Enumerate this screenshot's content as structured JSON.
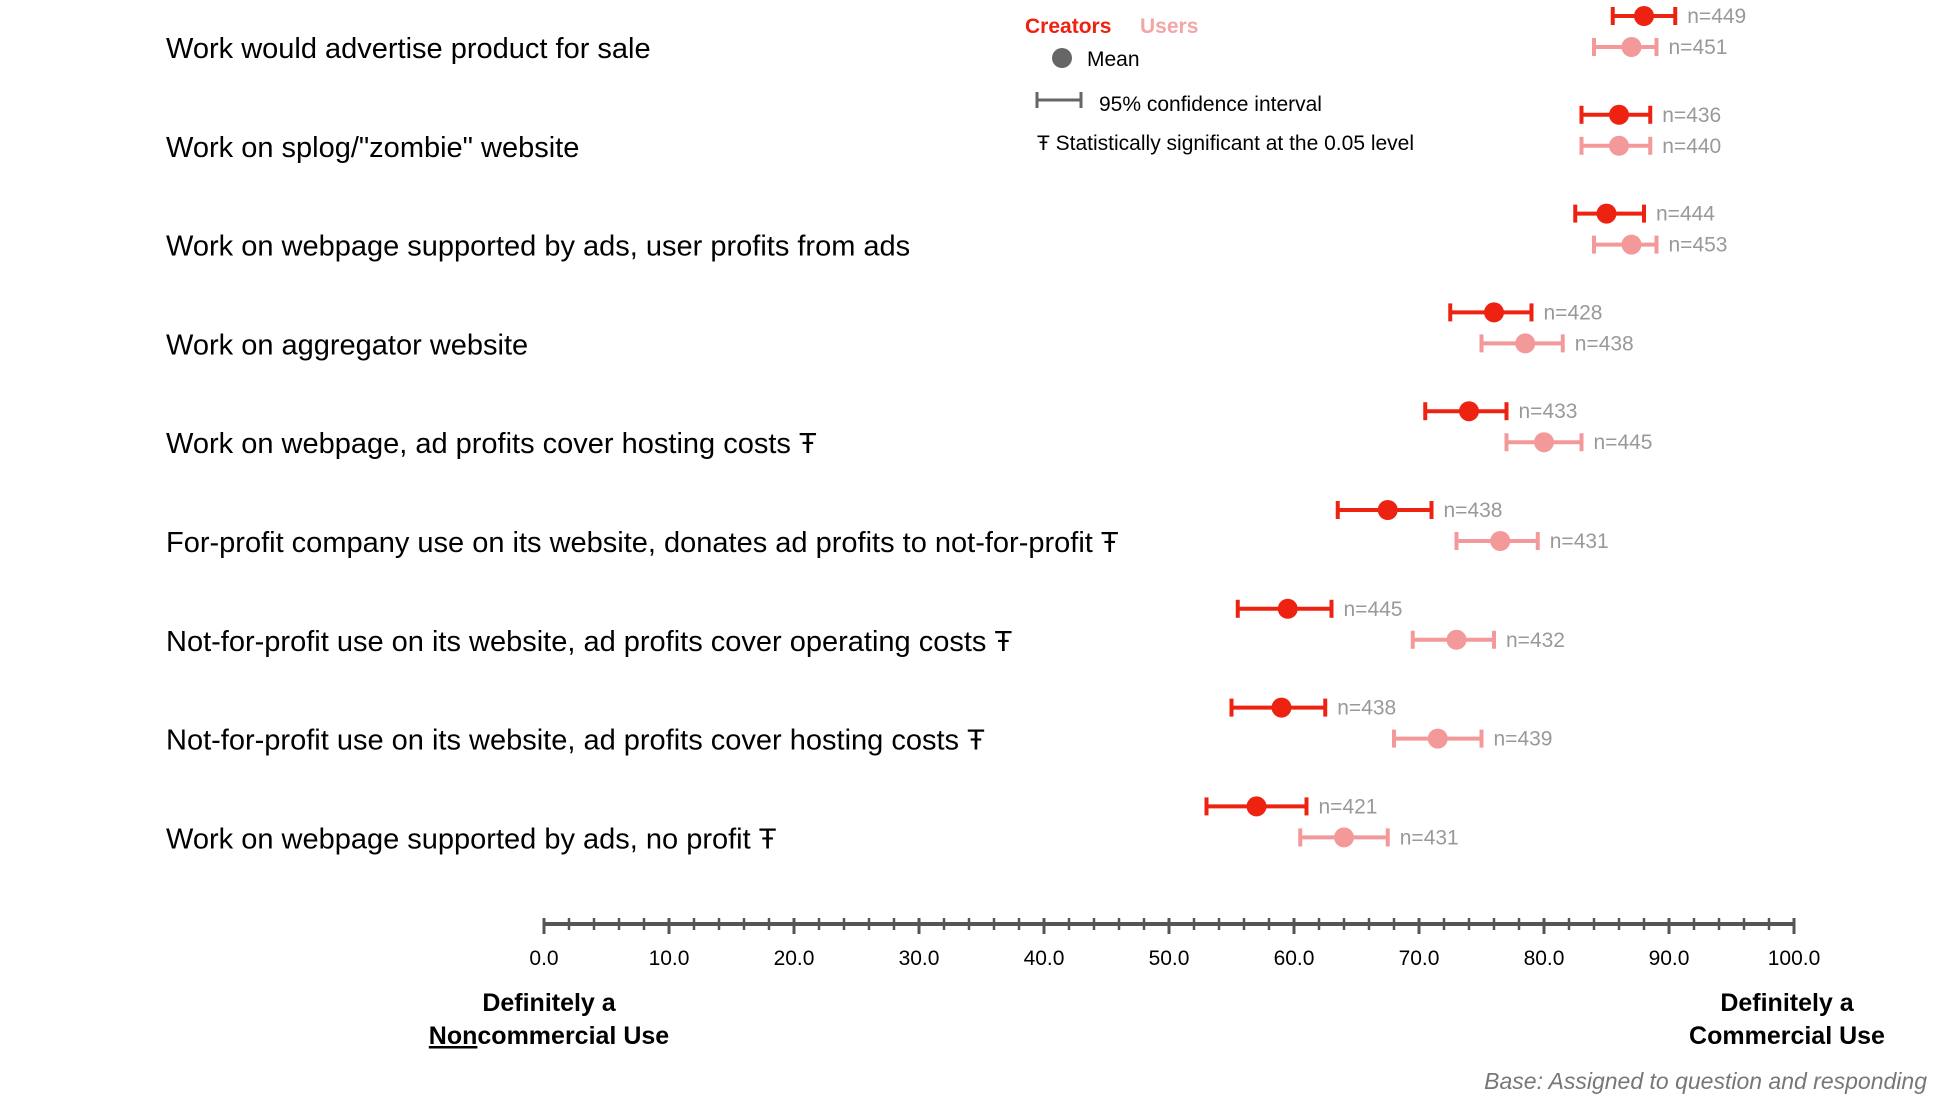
{
  "chart_data": {
    "type": "dot-interval",
    "categories": [
      "Work would advertise product for sale",
      "Work on splog/\"zombie\" website",
      "Work on webpage supported by ads,  user profits from ads",
      "Work on aggregator website",
      "Work on webpage,  ad profits cover hosting costs Ŧ",
      "For-profit company use on its website, donates ad profits to not-for-profit Ŧ",
      "Not-for-profit  use on its website,  ad profits cover operating costs Ŧ",
      "Not-for-profit  use on its website,  ad profits cover hosting costs Ŧ",
      "Work on webpage supported by ads,  no profit Ŧ"
    ],
    "series": [
      {
        "name": "Creators",
        "color": "#ee2211",
        "mean": [
          88.0,
          86.0,
          85.0,
          76.0,
          74.0,
          67.5,
          59.5,
          59.0,
          57.0
        ],
        "ci_low": [
          85.5,
          83.0,
          82.5,
          72.5,
          70.5,
          63.5,
          55.5,
          55.0,
          53.0
        ],
        "ci_high": [
          90.5,
          88.5,
          88.0,
          79.0,
          77.0,
          71.0,
          63.0,
          62.5,
          61.0
        ],
        "n": [
          "n=449",
          "n=436",
          "n=444",
          "n=428",
          "n=433",
          "n=438",
          "n=445",
          "n=438",
          "n=421"
        ]
      },
      {
        "name": "Users",
        "color": "#f49999",
        "mean": [
          87.0,
          86.0,
          87.0,
          78.5,
          80.0,
          76.5,
          73.0,
          71.5,
          64.0
        ],
        "ci_low": [
          84.0,
          83.0,
          84.0,
          75.0,
          77.0,
          73.0,
          69.5,
          68.0,
          60.5
        ],
        "ci_high": [
          89.0,
          88.5,
          89.0,
          81.5,
          83.0,
          79.5,
          76.0,
          75.0,
          67.5
        ],
        "n": [
          "n=451",
          "n=440",
          "n=453",
          "n=438",
          "n=445",
          "n=431",
          "n=432",
          "n=439",
          "n=431"
        ]
      }
    ],
    "xlim": [
      0,
      100
    ],
    "tick_labels": [
      "0.0",
      "10.0",
      "20.0",
      "30.0",
      "40.0",
      "50.0",
      "60.0",
      "70.0",
      "80.0",
      "90.0",
      "100.0"
    ],
    "minor_tick_step": 2,
    "legend": {
      "placement": "top-center",
      "series_labels": [
        "Creators",
        "Users"
      ],
      "mean_label": "Mean",
      "ci_label": "95% confidence interval",
      "significance_label": "Ŧ Statistically significant at the 0.05 level"
    },
    "axis_anchors": {
      "left_line1_prefix": "Definitely a",
      "left_line2_underlined": "Non",
      "left_line2_rest": "commercial Use",
      "right_line1": "Definitely a",
      "right_line2": "Commercial Use"
    },
    "note": "Base: Assigned to question and responding"
  }
}
